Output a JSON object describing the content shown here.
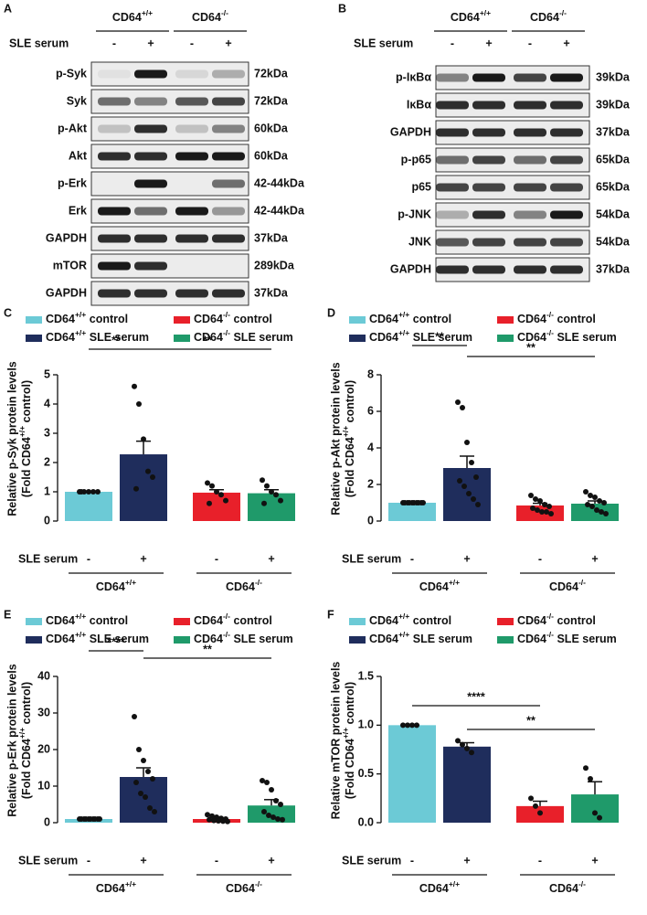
{
  "blots": [
    {
      "panel": "A",
      "groups": [
        "CD64+/+",
        "CD64-/-"
      ],
      "treatment": "SLE serum",
      "signs": [
        "-",
        "+",
        "-",
        "+"
      ],
      "rows": [
        {
          "protein": "p-Syk",
          "size": "72kDa"
        },
        {
          "protein": "Syk",
          "size": "72kDa"
        },
        {
          "protein": "p-Akt",
          "size": "60kDa"
        },
        {
          "protein": "Akt",
          "size": "60kDa"
        },
        {
          "protein": "p-Erk",
          "size": "42-44kDa"
        },
        {
          "protein": "Erk",
          "size": "42-44kDa"
        },
        {
          "protein": "GAPDH",
          "size": "37kDa"
        },
        {
          "protein": "mTOR",
          "size": "289kDa"
        },
        {
          "protein": "GAPDH",
          "size": "37kDa"
        }
      ]
    },
    {
      "panel": "B",
      "groups": [
        "CD64+/+",
        "CD64-/-"
      ],
      "treatment": "SLE serum",
      "signs": [
        "-",
        "+",
        "-",
        "+"
      ],
      "rows": [
        {
          "protein": "p-IκBα",
          "size": "39kDa"
        },
        {
          "protein": "IκBα",
          "size": "39kDa"
        },
        {
          "protein": "GAPDH",
          "size": "37kDa"
        },
        {
          "protein": "p-p65",
          "size": "65kDa"
        },
        {
          "protein": "p65",
          "size": "65kDa"
        },
        {
          "protein": "p-JNK",
          "size": "54kDa"
        },
        {
          "protein": "JNK",
          "size": "54kDa"
        },
        {
          "protein": "GAPDH",
          "size": "37kDa"
        }
      ]
    }
  ],
  "chart_data": [
    {
      "type": "bar",
      "panel": "C",
      "ylabel": [
        "Relative p-Syk protein levels",
        "(Fold CD64+/+ control)"
      ],
      "ylim": [
        0,
        5
      ],
      "yticks": [
        0,
        1,
        2,
        3,
        4,
        5
      ],
      "treatment": "SLE serum",
      "signs": [
        "-",
        "+",
        "-",
        "+"
      ],
      "groups": [
        "CD64+/+",
        "CD64-/-"
      ],
      "annotations": [
        "**",
        "**"
      ],
      "series": [
        {
          "name": "CD64+/+ control",
          "color": "#6ccad6",
          "values": [
            1
          ],
          "errors": [
            0
          ],
          "points": [
            1,
            1,
            1,
            1,
            1,
            1
          ]
        },
        {
          "name": "CD64+/+ SLE serum",
          "color": "#1f2d5c",
          "values": [
            2.28
          ],
          "errors": [
            0.45
          ],
          "points": [
            4.6,
            4.0,
            2.8,
            1.7,
            1.5,
            1.1
          ]
        },
        {
          "name": "CD64-/- control",
          "color": "#e8202a",
          "values": [
            0.97
          ],
          "errors": [
            0.1
          ],
          "points": [
            1.3,
            1.2,
            1.0,
            0.9,
            0.7,
            0.6
          ]
        },
        {
          "name": "CD64-/- SLE serum",
          "color": "#1f9a6a",
          "values": [
            0.95
          ],
          "errors": [
            0.12
          ],
          "points": [
            1.4,
            1.2,
            1.0,
            0.9,
            0.7,
            0.6
          ]
        }
      ]
    },
    {
      "type": "bar",
      "panel": "D",
      "ylabel": [
        "Relative p-Akt protein levels",
        "(Fold CD64+/+ control)"
      ],
      "ylim": [
        0,
        8
      ],
      "yticks": [
        0,
        2,
        4,
        6,
        8
      ],
      "treatment": "SLE serum",
      "signs": [
        "-",
        "+",
        "-",
        "+"
      ],
      "groups": [
        "CD64+/+",
        "CD64-/-"
      ],
      "annotations": [
        "**",
        "**"
      ],
      "series": [
        {
          "name": "CD64+/+ control",
          "color": "#6ccad6",
          "values": [
            1
          ],
          "errors": [
            0
          ],
          "points": [
            1,
            1,
            1,
            1,
            1,
            1,
            1,
            1,
            1,
            1
          ]
        },
        {
          "name": "CD64+/+ SLE serum",
          "color": "#1f2d5c",
          "values": [
            2.9
          ],
          "errors": [
            0.65
          ],
          "points": [
            6.5,
            6.2,
            4.3,
            3.2,
            2.4,
            2.2,
            1.9,
            1.5,
            1.2,
            0.9
          ]
        },
        {
          "name": "CD64-/- control",
          "color": "#e8202a",
          "values": [
            0.85
          ],
          "errors": [
            0.12
          ],
          "points": [
            1.4,
            1.2,
            1.1,
            0.9,
            0.8,
            0.7,
            0.6,
            0.5,
            0.5,
            0.4
          ]
        },
        {
          "name": "CD64-/- SLE serum",
          "color": "#1f9a6a",
          "values": [
            0.95
          ],
          "errors": [
            0.15
          ],
          "points": [
            1.6,
            1.4,
            1.3,
            1.1,
            1.0,
            0.9,
            0.8,
            0.6,
            0.5,
            0.4
          ]
        }
      ]
    },
    {
      "type": "bar",
      "panel": "E",
      "ylabel": [
        "Relative p-Erk protein levels",
        "(Fold CD64+/+ control)"
      ],
      "ylim": [
        0,
        40
      ],
      "yticks": [
        0,
        10,
        20,
        30,
        40
      ],
      "treatment": "SLE serum",
      "signs": [
        "-",
        "+",
        "-",
        "+"
      ],
      "groups": [
        "CD64+/+",
        "CD64-/-"
      ],
      "annotations": [
        "****",
        "**"
      ],
      "series": [
        {
          "name": "CD64+/+ control",
          "color": "#6ccad6",
          "values": [
            1
          ],
          "errors": [
            0
          ],
          "points": [
            1,
            1,
            1,
            1,
            1,
            1,
            1,
            1,
            1,
            1
          ]
        },
        {
          "name": "CD64+/+ SLE serum",
          "color": "#1f2d5c",
          "values": [
            12.5
          ],
          "errors": [
            2.5
          ],
          "points": [
            29,
            20,
            17,
            14,
            12,
            11,
            8,
            7,
            4,
            3
          ]
        },
        {
          "name": "CD64-/- control",
          "color": "#e8202a",
          "values": [
            1.0
          ],
          "errors": [
            0.3
          ],
          "points": [
            2.2,
            1.8,
            1.5,
            1.2,
            1.0,
            0.8,
            0.6,
            0.5,
            0.4,
            0.3
          ]
        },
        {
          "name": "CD64-/- SLE serum",
          "color": "#1f9a6a",
          "values": [
            4.7
          ],
          "errors": [
            1.6
          ],
          "points": [
            11.5,
            11,
            9,
            6,
            5,
            3,
            2,
            1.5,
            1,
            0.8
          ]
        }
      ]
    },
    {
      "type": "bar",
      "panel": "F",
      "ylabel": [
        "Relative mTOR protein levels",
        "(Fold CD64+/+ control)"
      ],
      "ylim": [
        0,
        1.5
      ],
      "yticks": [
        {
          "value": 0,
          "label": "0.0"
        },
        0.5,
        {
          "value": 1,
          "label": "1.0"
        },
        1.5
      ],
      "treatment": "SLE serum",
      "signs": [
        "-",
        "+",
        "-",
        "+"
      ],
      "groups": [
        "CD64+/+",
        "CD64-/-"
      ],
      "annotations": [
        "****",
        "**"
      ],
      "series": [
        {
          "name": "CD64+/+ control",
          "color": "#6ccad6",
          "values": [
            1.0
          ],
          "errors": [
            0
          ],
          "points": [
            1,
            1,
            1,
            1
          ]
        },
        {
          "name": "CD64+/+ SLE serum",
          "color": "#1f2d5c",
          "values": [
            0.78
          ],
          "errors": [
            0.04
          ],
          "points": [
            0.84,
            0.8,
            0.76,
            0.72
          ]
        },
        {
          "name": "CD64-/- control",
          "color": "#e8202a",
          "values": [
            0.17
          ],
          "errors": [
            0.05
          ],
          "points": [
            0.25,
            0.17,
            0.1
          ]
        },
        {
          "name": "CD64-/- SLE serum",
          "color": "#1f9a6a",
          "values": [
            0.29
          ],
          "errors": [
            0.13
          ],
          "points": [
            0.56,
            0.45,
            0.1,
            0.05
          ]
        }
      ]
    }
  ]
}
